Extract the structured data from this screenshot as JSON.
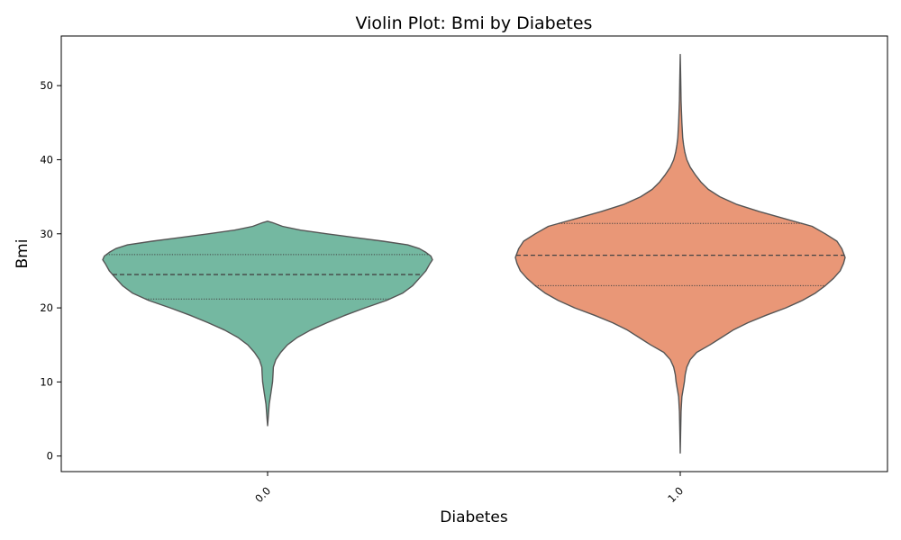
{
  "chart_data": {
    "type": "violin",
    "title": "Violin Plot: Bmi by Diabetes",
    "xlabel": "Diabetes",
    "ylabel": "Bmi",
    "ylim": [
      -2.1,
      56.7
    ],
    "yticks": [
      0,
      10,
      20,
      30,
      40,
      50
    ],
    "categories": [
      "0.0",
      "1.0"
    ],
    "grid": false,
    "legend": "none",
    "series": [
      {
        "category": "0.0",
        "color": "#74b8a1",
        "quartiles": {
          "q1": 21.2,
          "median": 24.5,
          "q3": 27.2
        },
        "profile": [
          [
            4.1,
            0.0
          ],
          [
            5.5,
            0.005
          ],
          [
            7.0,
            0.01
          ],
          [
            8.5,
            0.02
          ],
          [
            10.0,
            0.03
          ],
          [
            11.0,
            0.033
          ],
          [
            12.0,
            0.035
          ],
          [
            13.0,
            0.05
          ],
          [
            14.0,
            0.08
          ],
          [
            15.0,
            0.12
          ],
          [
            16.0,
            0.18
          ],
          [
            17.0,
            0.26
          ],
          [
            18.0,
            0.36
          ],
          [
            19.0,
            0.47
          ],
          [
            20.0,
            0.59
          ],
          [
            21.0,
            0.72
          ],
          [
            22.0,
            0.82
          ],
          [
            23.0,
            0.88
          ],
          [
            24.0,
            0.92
          ],
          [
            25.0,
            0.96
          ],
          [
            26.0,
            0.985
          ],
          [
            26.5,
            1.0
          ],
          [
            27.0,
            0.99
          ],
          [
            27.5,
            0.96
          ],
          [
            28.0,
            0.92
          ],
          [
            28.5,
            0.85
          ],
          [
            29.0,
            0.7
          ],
          [
            29.5,
            0.53
          ],
          [
            30.0,
            0.36
          ],
          [
            30.5,
            0.2
          ],
          [
            31.0,
            0.09
          ],
          [
            31.5,
            0.03
          ],
          [
            31.7,
            0.0
          ]
        ]
      },
      {
        "category": "1.0",
        "color": "#e99777",
        "quartiles": {
          "q1": 23.0,
          "median": 27.1,
          "q3": 31.4
        },
        "profile": [
          [
            0.4,
            0.0
          ],
          [
            3.0,
            0.002
          ],
          [
            6.0,
            0.005
          ],
          [
            8.0,
            0.01
          ],
          [
            10.0,
            0.025
          ],
          [
            11.0,
            0.03
          ],
          [
            12.0,
            0.04
          ],
          [
            13.0,
            0.06
          ],
          [
            14.0,
            0.1
          ],
          [
            15.0,
            0.18
          ],
          [
            16.0,
            0.25
          ],
          [
            17.0,
            0.32
          ],
          [
            18.0,
            0.41
          ],
          [
            19.0,
            0.52
          ],
          [
            20.0,
            0.64
          ],
          [
            21.0,
            0.74
          ],
          [
            22.0,
            0.82
          ],
          [
            23.0,
            0.88
          ],
          [
            24.0,
            0.93
          ],
          [
            25.0,
            0.97
          ],
          [
            26.0,
            0.99
          ],
          [
            26.8,
            1.0
          ],
          [
            28.0,
            0.98
          ],
          [
            29.0,
            0.95
          ],
          [
            30.0,
            0.88
          ],
          [
            31.0,
            0.8
          ],
          [
            32.0,
            0.64
          ],
          [
            33.0,
            0.48
          ],
          [
            34.0,
            0.34
          ],
          [
            35.0,
            0.24
          ],
          [
            36.0,
            0.17
          ],
          [
            37.0,
            0.125
          ],
          [
            38.0,
            0.09
          ],
          [
            39.0,
            0.06
          ],
          [
            40.0,
            0.04
          ],
          [
            41.0,
            0.028
          ],
          [
            42.0,
            0.02
          ],
          [
            43.0,
            0.015
          ],
          [
            45.0,
            0.01
          ],
          [
            48.0,
            0.005
          ],
          [
            51.0,
            0.003
          ],
          [
            54.2,
            0.0
          ]
        ]
      }
    ]
  }
}
